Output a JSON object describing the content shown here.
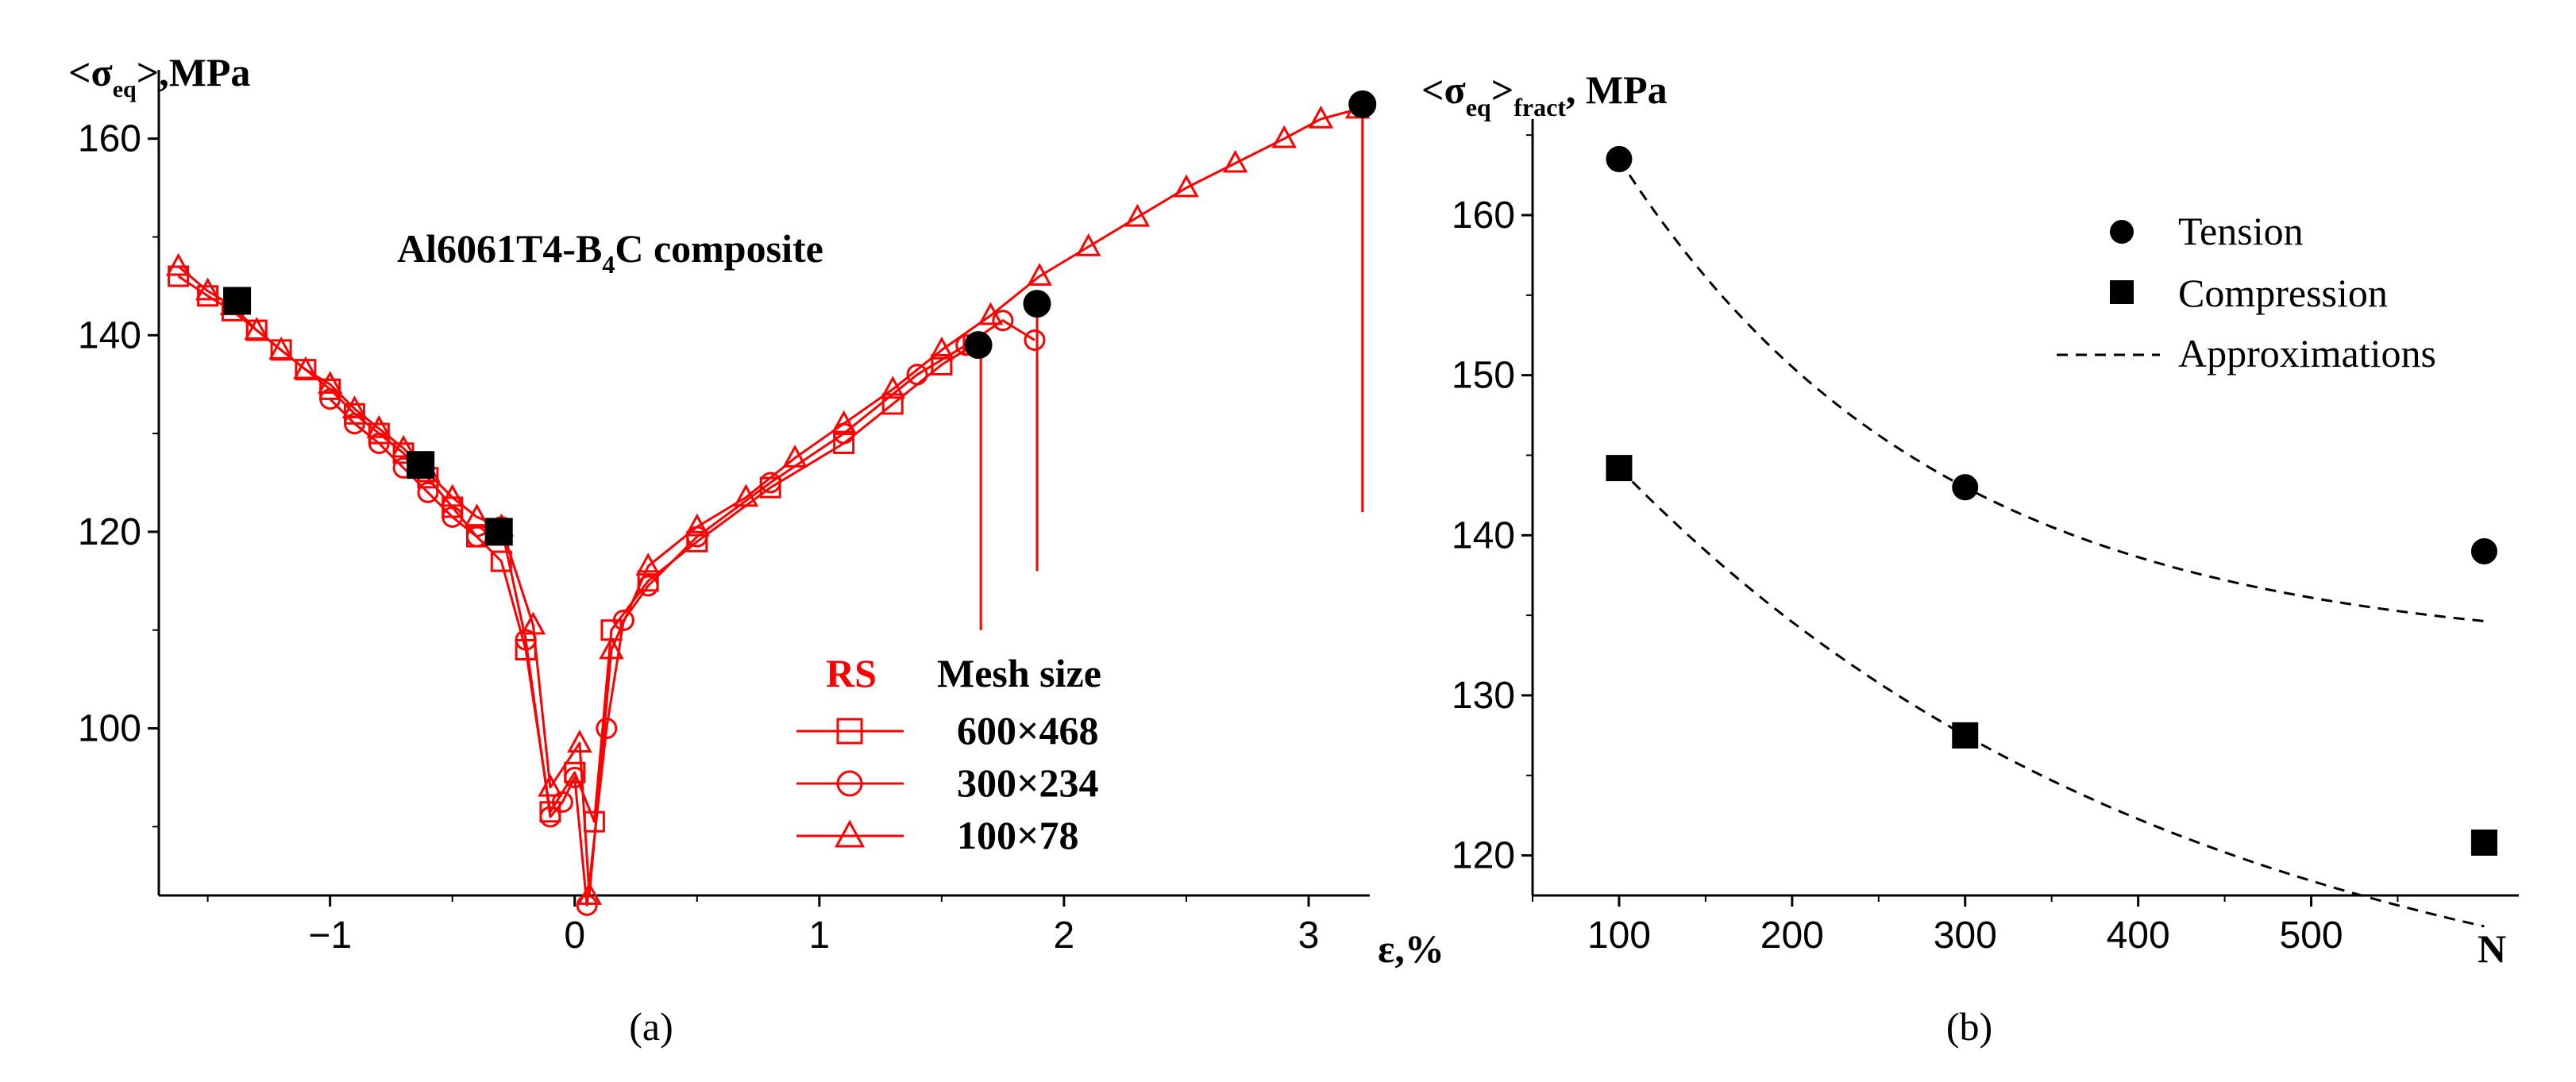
{
  "chart_data": [
    {
      "type": "line",
      "panel_label": "(a)",
      "title": "Al6061T4-B4C composite",
      "ylabel": "<σeq>,MPa",
      "xlabel": "ε,%",
      "xlim": [
        -1.7,
        3.25
      ],
      "ylim": [
        83,
        167
      ],
      "xticks": [
        "−1",
        "0",
        "1",
        "2",
        "3"
      ],
      "yticks": [
        "100",
        "120",
        "140",
        "160"
      ],
      "legend_title": [
        "RS",
        "Mesh size"
      ],
      "series": [
        {
          "name": "600×468",
          "marker": "square",
          "x": [
            -1.62,
            -1.5,
            -1.4,
            -1.3,
            -1.2,
            -1.1,
            -1.0,
            -0.9,
            -0.8,
            -0.7,
            -0.6,
            -0.5,
            -0.4,
            -0.3,
            -0.2,
            -0.1,
            0.0,
            0.08,
            0.15,
            0.3,
            0.5,
            0.8,
            1.1,
            1.3,
            1.5,
            1.63
          ],
          "y": [
            146,
            144,
            142.5,
            140.5,
            138.5,
            136.5,
            134.5,
            132,
            130,
            128,
            125.5,
            122.5,
            119.5,
            117,
            108,
            91.5,
            95.5,
            90.5,
            110,
            115,
            119,
            124.5,
            129,
            133,
            137,
            139
          ]
        },
        {
          "name": "300×234",
          "marker": "circle",
          "x": [
            -1.0,
            -0.9,
            -0.8,
            -0.7,
            -0.6,
            -0.5,
            -0.4,
            -0.3,
            -0.2,
            -0.1,
            -0.05,
            0.0,
            0.05,
            0.13,
            0.2,
            0.3,
            0.5,
            0.8,
            1.1,
            1.4,
            1.6,
            1.75,
            1.88
          ],
          "y": [
            133.5,
            131,
            129,
            126.5,
            124,
            121.5,
            119.5,
            120.5,
            109,
            91,
            92.5,
            95,
            82,
            100,
            111,
            114.5,
            119.5,
            125,
            130,
            136,
            139,
            141.5,
            139.5
          ]
        },
        {
          "name": "100×78",
          "marker": "triangle",
          "x": [
            -1.62,
            -1.5,
            -1.4,
            -1.3,
            -1.2,
            -1.1,
            -1.0,
            -0.9,
            -0.8,
            -0.7,
            -0.6,
            -0.5,
            -0.4,
            -0.3,
            -0.17,
            -0.1,
            0.02,
            0.06,
            0.15,
            0.3,
            0.5,
            0.7,
            0.9,
            1.1,
            1.3,
            1.5,
            1.7,
            1.9,
            2.1,
            2.3,
            2.5,
            2.7,
            2.9,
            3.05,
            3.2
          ],
          "y": [
            147,
            144.5,
            143,
            140.5,
            138.5,
            136.5,
            135,
            132.5,
            130.5,
            128.5,
            126,
            123.5,
            121.5,
            120.5,
            110.5,
            94,
            98.5,
            83,
            108,
            116.5,
            120.5,
            123.5,
            127.5,
            131,
            134.5,
            138.5,
            142,
            146,
            149,
            152,
            155,
            157.5,
            160,
            162,
            163
          ]
        }
      ],
      "highlight_points": [
        {
          "marker": "square",
          "x": [
            -1.38,
            -0.63,
            -0.31
          ],
          "y": [
            143.5,
            126.8,
            120
          ]
        },
        {
          "marker": "circle",
          "x": [
            1.65,
            1.89,
            3.22
          ],
          "y": [
            139,
            143.2,
            163.5
          ]
        }
      ],
      "fracture_drops": [
        {
          "x": 1.66,
          "y_from": 139,
          "y_to": 110
        },
        {
          "x": 1.89,
          "y_from": 143,
          "y_to": 116
        },
        {
          "x": 3.22,
          "y_from": 163.5,
          "y_to": 122
        }
      ]
    },
    {
      "type": "scatter",
      "panel_label": "(b)",
      "ylabel": "<σeq>fract, MPa",
      "xlabel": "N",
      "xlim": [
        50,
        620
      ],
      "ylim": [
        117.5,
        166
      ],
      "xticks": [
        "100",
        "200",
        "300",
        "400",
        "500"
      ],
      "yticks": [
        "120",
        "130",
        "140",
        "150",
        "160"
      ],
      "series": [
        {
          "name": "Tension",
          "marker": "circle",
          "x": [
            100,
            300,
            600
          ],
          "y": [
            163.5,
            143,
            139
          ]
        },
        {
          "name": "Compression",
          "marker": "square",
          "x": [
            100,
            300,
            600
          ],
          "y": [
            144.2,
            127.5,
            120.8
          ]
        },
        {
          "name": "Approximations",
          "style": "dashed"
        }
      ]
    }
  ]
}
